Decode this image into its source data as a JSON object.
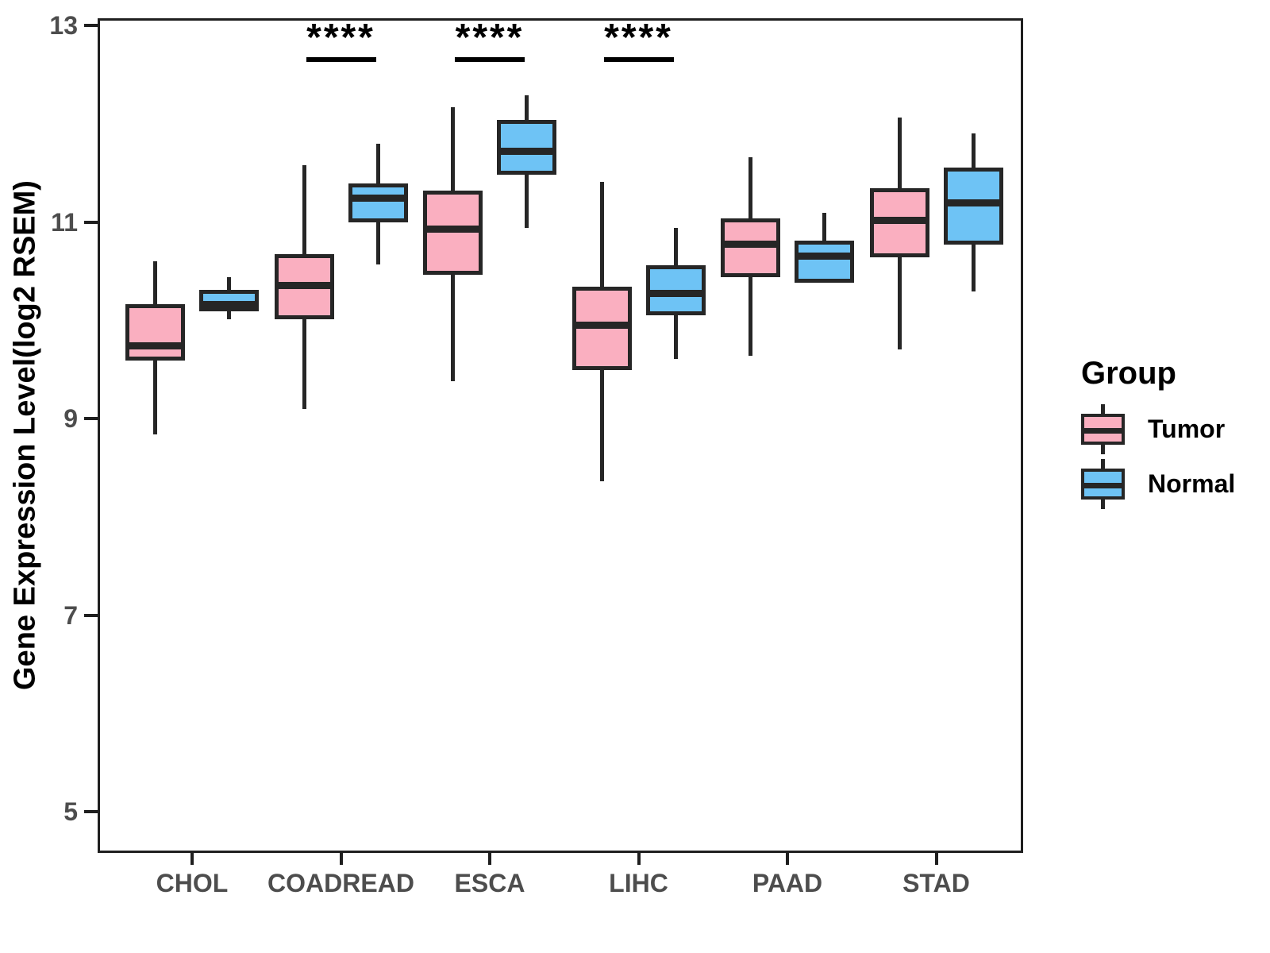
{
  "chart_data": {
    "type": "boxplot",
    "title": "",
    "xlabel": "",
    "ylabel": "Gene Expression Level(log2 RSEM)",
    "yticks": [
      5,
      7,
      9,
      11,
      13
    ],
    "ylim": [
      4.6,
      13.1
    ],
    "grid": false,
    "line_color": "#262626",
    "categories": [
      "CHOL",
      "COADREAD",
      "ESCA",
      "LIHC",
      "PAAD",
      "STAD"
    ],
    "series": [
      {
        "name": "Tumor",
        "fill": "#FAAFC0",
        "boxes": [
          {
            "low": 8.84,
            "q1": 9.61,
            "med": 9.74,
            "q3": 10.14,
            "high": 10.6
          },
          {
            "low": 9.1,
            "q1": 10.03,
            "med": 10.35,
            "q3": 10.65,
            "high": 11.58
          },
          {
            "low": 9.38,
            "q1": 10.48,
            "med": 10.93,
            "q3": 11.3,
            "high": 12.17
          },
          {
            "low": 8.36,
            "q1": 9.51,
            "med": 9.95,
            "q3": 10.32,
            "high": 11.41
          },
          {
            "low": 9.64,
            "q1": 10.46,
            "med": 10.77,
            "q3": 11.02,
            "high": 11.66
          },
          {
            "low": 9.7,
            "q1": 10.66,
            "med": 11.02,
            "q3": 11.32,
            "high": 12.06
          }
        ]
      },
      {
        "name": "Normal",
        "fill": "#6EC3F5",
        "boxes": [
          {
            "low": 10.01,
            "q1": 10.11,
            "med": 10.16,
            "q3": 10.29,
            "high": 10.44
          },
          {
            "low": 10.57,
            "q1": 11.02,
            "med": 11.24,
            "q3": 11.37,
            "high": 11.8
          },
          {
            "low": 10.94,
            "q1": 11.5,
            "med": 11.72,
            "q3": 12.02,
            "high": 12.29
          },
          {
            "low": 9.61,
            "q1": 10.07,
            "med": 10.27,
            "q3": 10.54,
            "high": 10.94
          },
          {
            "low": 10.4,
            "q1": 10.4,
            "med": 10.65,
            "q3": 10.79,
            "high": 11.09
          },
          {
            "low": 10.29,
            "q1": 10.79,
            "med": 11.19,
            "q3": 11.53,
            "high": 11.9
          }
        ]
      }
    ],
    "significance": [
      {
        "category": "COADREAD",
        "label": "****"
      },
      {
        "category": "ESCA",
        "label": "****"
      },
      {
        "category": "LIHC",
        "label": "****"
      }
    ],
    "legend": {
      "title": "Group",
      "position": "right",
      "entries": [
        "Tumor",
        "Normal"
      ]
    }
  }
}
